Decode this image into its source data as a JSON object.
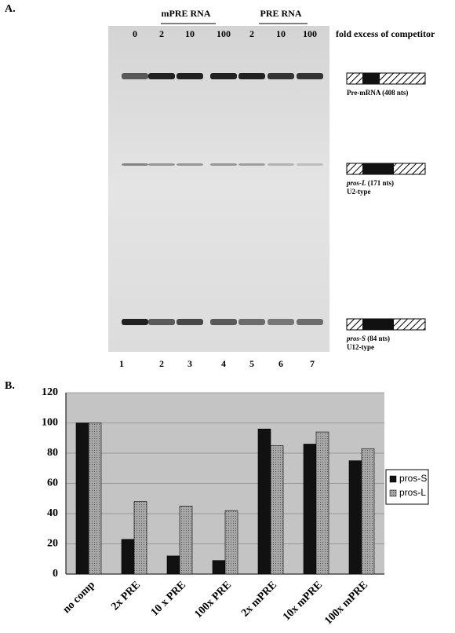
{
  "panel_a": {
    "label": "A.",
    "group_labels": [
      "mPRE RNA",
      "PRE RNA"
    ],
    "lane_fold": [
      0,
      2,
      10,
      100,
      2,
      10,
      100
    ],
    "fold_caption": "fold excess of competitor",
    "lane_numbers": [
      1,
      2,
      3,
      4,
      5,
      6,
      7
    ],
    "bands": [
      {
        "gene": "Pre-mRNA",
        "size": "(408 nts)"
      },
      {
        "gene": "pros-L",
        "size": "(171 nts)",
        "type": "U2-type"
      },
      {
        "gene": "pros-S",
        "size": "(84 nts)",
        "type": "U12-type"
      }
    ]
  },
  "panel_b_label": "B.",
  "chart_data": {
    "type": "bar",
    "categories": [
      "no comp",
      "2x PRE",
      "10 x PRE",
      "100x PRE",
      "2x mPRE",
      "10x mPRE",
      "100x mPRE"
    ],
    "series": [
      {
        "name": "pros-S",
        "color": "#111111",
        "values": [
          100,
          23,
          12,
          9,
          96,
          86,
          75
        ]
      },
      {
        "name": "pros-L",
        "color": "#a8a8a8",
        "values": [
          100,
          48,
          45,
          42,
          85,
          94,
          83
        ]
      }
    ],
    "ylim": [
      0,
      120
    ],
    "yticks": [
      0,
      20,
      40,
      60,
      80,
      100,
      120
    ],
    "grid": true,
    "legend": "right"
  }
}
